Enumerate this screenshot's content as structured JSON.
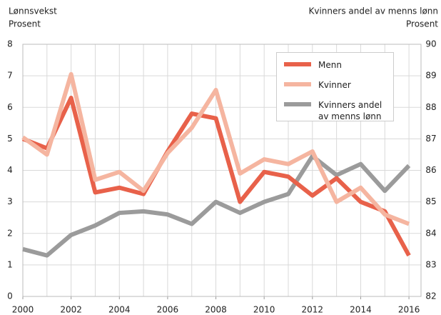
{
  "chart_data": {
    "type": "line",
    "ylabel": "Lønnsvekst",
    "yunit": "Prosent",
    "y2label": "Kvinners andel av menns lønn",
    "y2unit": "Prosent",
    "x": [
      2000,
      2001,
      2002,
      2003,
      2004,
      2005,
      2006,
      2007,
      2008,
      2009,
      2010,
      2011,
      2012,
      2013,
      2014,
      2015,
      2016
    ],
    "series": [
      {
        "name": "Menn",
        "color": "#e8614a",
        "values": [
          5.0,
          4.7,
          6.3,
          3.3,
          3.45,
          3.25,
          4.6,
          5.8,
          5.65,
          3.0,
          3.95,
          3.8,
          3.2,
          3.75,
          3.0,
          2.7,
          1.3
        ]
      },
      {
        "name": "Kvinner",
        "color": "#f5b5a0",
        "values": [
          5.05,
          4.5,
          7.05,
          3.7,
          3.95,
          3.35,
          4.55,
          5.35,
          6.55,
          3.9,
          4.35,
          4.2,
          4.6,
          3.0,
          3.45,
          2.6,
          2.3
        ]
      },
      {
        "name": "Kvinners andel av menns lønn",
        "color": "#9b9b9b",
        "axis": "y2",
        "values": [
          83.5,
          83.3,
          83.95,
          84.25,
          84.65,
          84.7,
          84.6,
          84.3,
          85.0,
          84.65,
          85.0,
          85.25,
          86.45,
          85.85,
          86.2,
          85.35,
          86.15
        ]
      }
    ],
    "xlim": [
      2000,
      2016.5
    ],
    "xticks": [
      2000,
      2002,
      2004,
      2006,
      2008,
      2010,
      2012,
      2014,
      2016
    ],
    "ylim": [
      0,
      8
    ],
    "yticks": [
      0,
      1,
      2,
      3,
      4,
      5,
      6,
      7,
      8
    ],
    "y2lim": [
      82,
      90
    ],
    "y2ticks": [
      82,
      83,
      84,
      85,
      86,
      87,
      88,
      89,
      90
    ],
    "grid": true,
    "legend": "upper right"
  }
}
